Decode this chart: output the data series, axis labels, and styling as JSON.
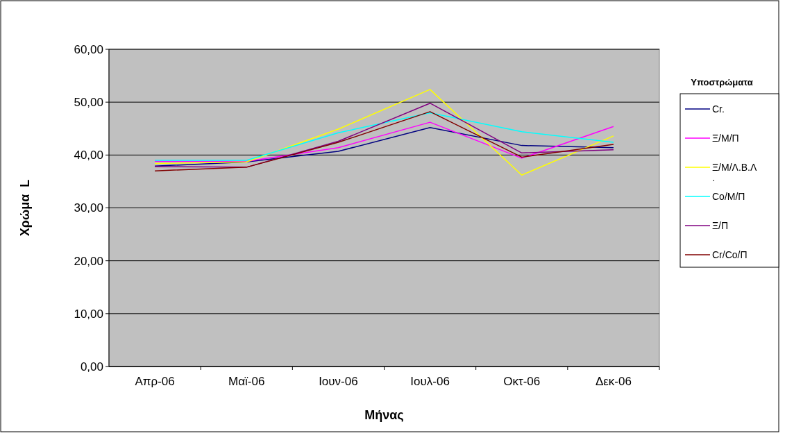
{
  "chart_data": {
    "type": "line",
    "xlabel": "Μήνας",
    "ylabel": "Χρώμα  L",
    "legend_title": "Υποστρώματα",
    "categories": [
      "Απρ-06",
      "Μαϊ-06",
      "Ιουν-06",
      "Ιουλ-06",
      "Οκτ-06",
      "Δεκ-06"
    ],
    "series": [
      {
        "name": "Cr.",
        "color": "#000080",
        "values": [
          37.9,
          38.7,
          40.7,
          45.2,
          41.8,
          41.4
        ]
      },
      {
        "name": "Ξ/Μ/Π",
        "color": "#ff00ff",
        "values": [
          38.8,
          38.8,
          41.4,
          46.2,
          39.4,
          45.4
        ]
      },
      {
        "name": "Ξ/Μ/Λ.Β.Λ.",
        "color": "#ffff00",
        "values": [
          38.4,
          38.7,
          44.9,
          52.4,
          36.2,
          43.6
        ]
      },
      {
        "name": "Co/Μ/Π",
        "color": "#00ffff",
        "values": [
          39.0,
          39.0,
          44.2,
          48.0,
          44.4,
          42.4
        ]
      },
      {
        "name": "Ξ/Π",
        "color": "#800080",
        "values": [
          37.8,
          37.7,
          42.6,
          49.8,
          40.4,
          41.0
        ]
      },
      {
        "name": "Cr/Co/Π",
        "color": "#800000",
        "values": [
          37.0,
          37.7,
          42.4,
          48.2,
          39.6,
          42.0
        ]
      }
    ],
    "ylim": [
      0,
      60
    ],
    "yticks": [
      {
        "value": 0,
        "label": "0,00"
      },
      {
        "value": 10,
        "label": "10,00"
      },
      {
        "value": 20,
        "label": "20,00"
      },
      {
        "value": 30,
        "label": "30,00"
      },
      {
        "value": 40,
        "label": "40,00"
      },
      {
        "value": 50,
        "label": "50,00"
      },
      {
        "value": 60,
        "label": "60,00"
      }
    ],
    "grid": "y",
    "legend": "right",
    "marker": "none",
    "line_style": "solid"
  }
}
